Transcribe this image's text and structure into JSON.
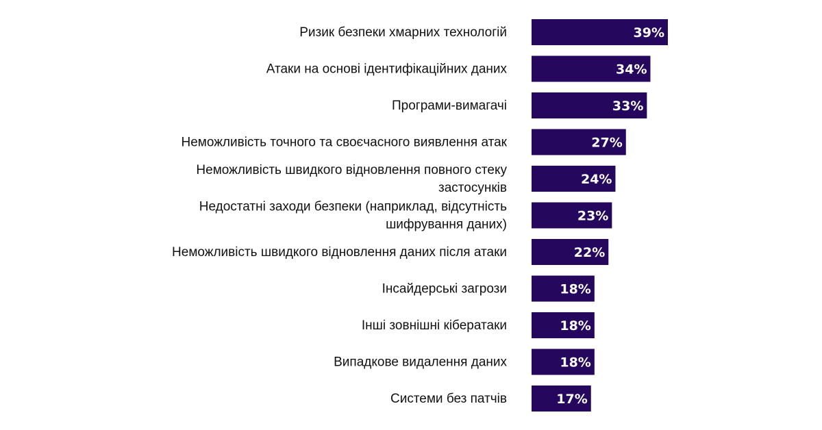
{
  "chart_data": {
    "type": "bar",
    "orientation": "horizontal",
    "categories": [
      "Ризик безпеки хмарних технологій",
      "Атаки на основі ідентифікаційних даних",
      "Програми-вимагачі",
      "Неможливість точного та своєчасного виявлення атак",
      "Неможливість швидкого відновлення повного стеку застосунків",
      "Недостатні заходи безпеки (наприклад, відсутність шифрування даних)",
      "Неможливість швидкого відновлення даних після атаки",
      "Інсайдерські загрози",
      "Інші зовнішні кібератаки",
      "Випадкове видалення даних",
      "Системи без патчів"
    ],
    "category_lines": [
      [
        "Ризик безпеки хмарних технологій"
      ],
      [
        "Атаки на основі ідентифікаційних даних"
      ],
      [
        "Програми-вимагачі"
      ],
      [
        "Неможливість точного та своєчасного виявлення атак"
      ],
      [
        "Неможливість швидкого відновлення повного стеку",
        "застосунків"
      ],
      [
        "Недостатні заходи безпеки (наприклад, відсутність",
        "шифрування даних)"
      ],
      [
        "Неможливість швидкого відновлення даних після атаки"
      ],
      [
        "Інсайдерські загрози"
      ],
      [
        "Інші зовнішні кібератаки"
      ],
      [
        "Випадкове видалення даних"
      ],
      [
        "Системи без патчів"
      ]
    ],
    "values": [
      39,
      34,
      33,
      27,
      24,
      23,
      22,
      18,
      18,
      18,
      17
    ],
    "data_labels": [
      "39%",
      "34%",
      "33%",
      "27%",
      "24%",
      "23%",
      "22%",
      "18%",
      "18%",
      "18%",
      "17%"
    ],
    "xlim": [
      0,
      39
    ],
    "title": "",
    "xlabel": "",
    "ylabel": "",
    "grid": false,
    "legend": "none",
    "bar_color": "#25085e",
    "label_color": "#111111",
    "value_label_color": "#ffffff"
  }
}
